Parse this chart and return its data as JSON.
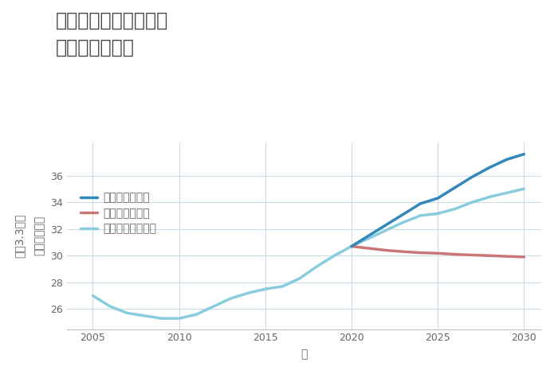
{
  "title_line1": "愛知県岡崎市生平町の",
  "title_line2": "土地の価格推移",
  "xlabel": "年",
  "ylabel": "単価（万円）",
  "ylabel2": "坪（3.3㎡）",
  "xlim": [
    2003.5,
    2031
  ],
  "ylim": [
    24.5,
    38.5
  ],
  "xticks": [
    2005,
    2010,
    2015,
    2020,
    2025,
    2030
  ],
  "yticks": [
    26,
    28,
    30,
    32,
    34,
    36
  ],
  "background_color": "#ffffff",
  "grid_color": "#ccdde8",
  "series": {
    "good": {
      "label": "グッドシナリオ",
      "color": "#3388bb",
      "linewidth": 2.5,
      "years": [
        2020,
        2021,
        2022,
        2023,
        2024,
        2025,
        2026,
        2027,
        2028,
        2029,
        2030
      ],
      "values": [
        30.7,
        31.5,
        32.3,
        33.1,
        33.9,
        34.3,
        35.1,
        35.9,
        36.6,
        37.2,
        37.6
      ]
    },
    "bad": {
      "label": "バッドシナリオ",
      "color": "#cc7777",
      "linewidth": 2.5,
      "years": [
        2020,
        2021,
        2022,
        2023,
        2024,
        2025,
        2026,
        2027,
        2028,
        2029,
        2030
      ],
      "values": [
        30.7,
        30.55,
        30.4,
        30.3,
        30.22,
        30.18,
        30.1,
        30.05,
        30.0,
        29.95,
        29.9
      ]
    },
    "normal": {
      "label": "ノーマルシナリオ",
      "color": "#88ccdd",
      "linewidth": 2.5,
      "years": [
        2005,
        2006,
        2007,
        2008,
        2009,
        2010,
        2011,
        2012,
        2013,
        2014,
        2015,
        2016,
        2017,
        2018,
        2019,
        2020,
        2021,
        2022,
        2023,
        2024,
        2025,
        2026,
        2027,
        2028,
        2029,
        2030
      ],
      "values": [
        27.0,
        26.2,
        25.7,
        25.5,
        25.3,
        25.3,
        25.6,
        26.2,
        26.8,
        27.2,
        27.5,
        27.7,
        28.3,
        29.2,
        30.0,
        30.7,
        31.3,
        31.9,
        32.5,
        33.0,
        33.15,
        33.5,
        34.0,
        34.4,
        34.7,
        35.0
      ]
    }
  },
  "title_fontsize": 17,
  "axis_label_fontsize": 10,
  "tick_fontsize": 9,
  "legend_fontsize": 10,
  "title_color": "#444444",
  "tick_color": "#666666",
  "label_color": "#666666"
}
